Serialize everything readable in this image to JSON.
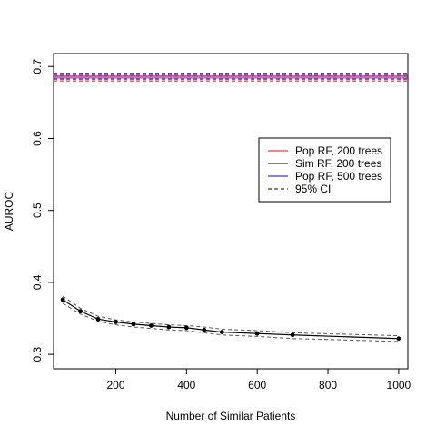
{
  "chart_data": {
    "type": "line",
    "xlabel": "Number of Similar Patients",
    "ylabel": "AUROC",
    "xlim": [
      24,
      1026
    ],
    "ylim": [
      0.28,
      0.718
    ],
    "x_ticks": [
      200,
      400,
      600,
      800,
      1000
    ],
    "x_tick_labels": [
      "200",
      "400",
      "600",
      "800",
      "1000"
    ],
    "y_ticks": [
      0.3,
      0.4,
      0.5,
      0.6,
      0.7
    ],
    "y_tick_labels": [
      "0.3",
      "0.4",
      "0.5",
      "0.6",
      "0.7"
    ],
    "reference_lines": [
      {
        "name": "Pop RF, 200 trees",
        "color": "#ff0000",
        "value": 0.684,
        "ci": [
          0.68,
          0.688
        ]
      },
      {
        "name": "Pop RF, 500 trees",
        "color": "#0000ff",
        "value": 0.6865,
        "ci": [
          0.6825,
          0.6905
        ]
      }
    ],
    "series": [
      {
        "name": "Sim RF, 200 trees",
        "color": "#000000",
        "x": [
          50,
          100,
          150,
          200,
          250,
          300,
          350,
          400,
          450,
          500,
          600,
          700,
          1000
        ],
        "values": [
          0.376,
          0.36,
          0.349,
          0.345,
          0.342,
          0.34,
          0.338,
          0.337,
          0.334,
          0.331,
          0.329,
          0.327,
          0.322
        ],
        "ci_lower": [
          0.371,
          0.356,
          0.346,
          0.341,
          0.338,
          0.336,
          0.334,
          0.333,
          0.33,
          0.327,
          0.325,
          0.322,
          0.318
        ],
        "ci_upper": [
          0.381,
          0.364,
          0.353,
          0.348,
          0.345,
          0.343,
          0.341,
          0.34,
          0.338,
          0.335,
          0.333,
          0.33,
          0.326
        ]
      }
    ],
    "legend": {
      "position": "right",
      "entries": [
        {
          "label": "Pop RF, 200 trees",
          "color": "#ff0000",
          "style": "solid"
        },
        {
          "label": "Sim RF, 200 trees",
          "color": "#000000",
          "style": "solid"
        },
        {
          "label": "Pop RF, 500 trees",
          "color": "#0000ff",
          "style": "solid"
        },
        {
          "label": "95% CI",
          "color": "#000000",
          "style": "dashed"
        }
      ]
    },
    "grid": false
  }
}
